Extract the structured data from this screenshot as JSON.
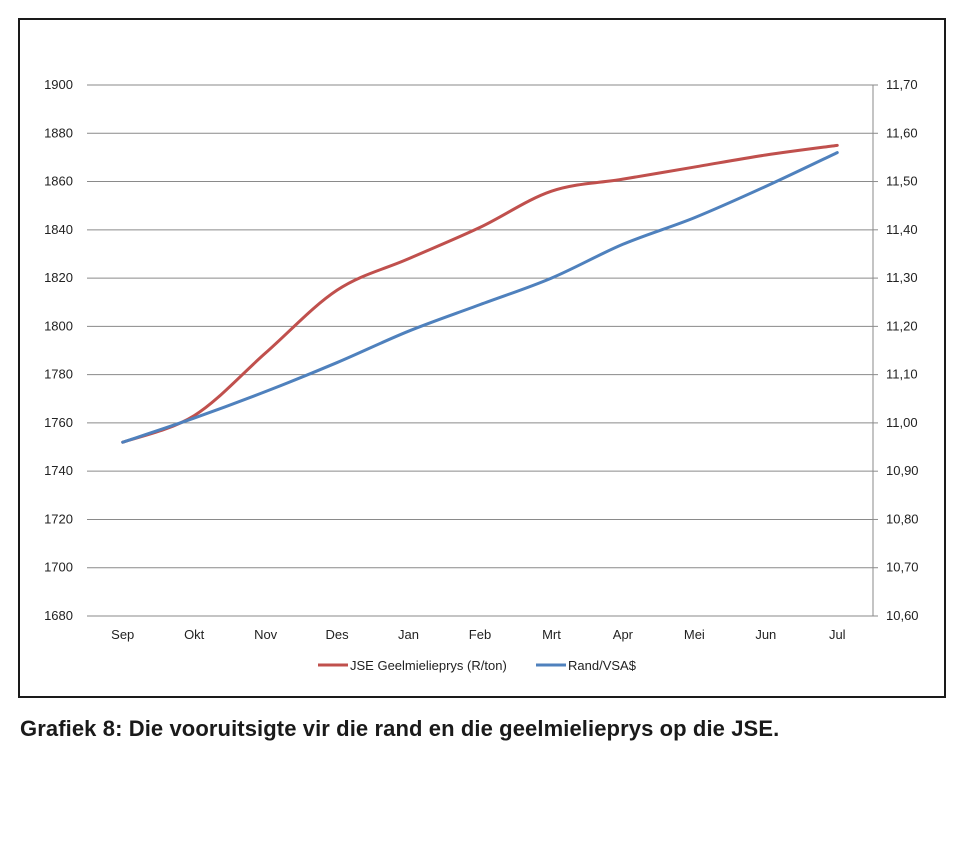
{
  "caption": "Grafiek 8: Die vooruitsigte vir die rand en die geelmielieprys op die JSE.",
  "chart_data": {
    "type": "line",
    "categories": [
      "Sep",
      "Okt",
      "Nov",
      "Des",
      "Jan",
      "Feb",
      "Mrt",
      "Apr",
      "Mei",
      "Jun",
      "Jul"
    ],
    "y_left": {
      "ylim": [
        1680,
        1900
      ],
      "ticks": [
        "1680",
        "1700",
        "1720",
        "1740",
        "1760",
        "1780",
        "1800",
        "1820",
        "1840",
        "1860",
        "1880",
        "1900"
      ]
    },
    "y_right": {
      "ylim": [
        10.6,
        11.7
      ],
      "ticks": [
        "10,60",
        "10,70",
        "10,80",
        "10,90",
        "11,00",
        "11,10",
        "11,20",
        "11,30",
        "11,40",
        "11,50",
        "11,60",
        "11,70"
      ]
    },
    "grid": true,
    "legend_position": "bottom",
    "series": [
      {
        "name": "JSE Geelmielieprys (R/ton)",
        "axis": "left",
        "color": "#c0504d",
        "values": [
          1752,
          1763,
          1789,
          1815,
          1828,
          1841,
          1856,
          1861,
          1866,
          1871,
          1875
        ]
      },
      {
        "name": "Rand/VSA$",
        "axis": "right",
        "color": "#4f81bd",
        "values": [
          10.96,
          11.01,
          11.065,
          11.125,
          11.19,
          11.245,
          11.3,
          11.37,
          11.425,
          11.49,
          11.56
        ]
      }
    ]
  }
}
